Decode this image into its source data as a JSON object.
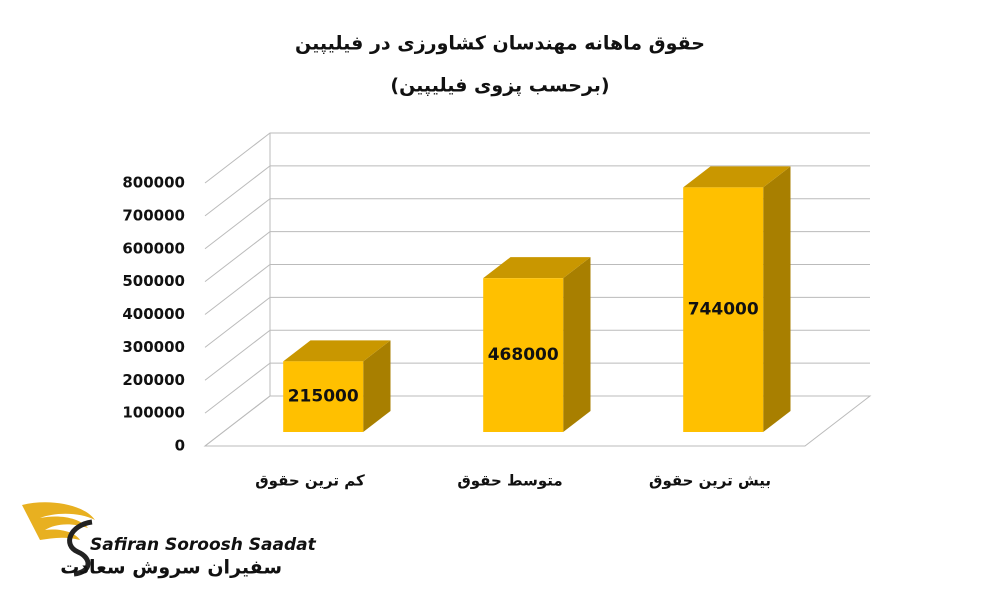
{
  "chart_data": {
    "type": "bar3d",
    "title": "حقوق ماهانه مهندسان کشاورزی در فیلیپین",
    "subtitle": "(برحسب  پزوی فیلیپین)",
    "categories": [
      "کم ترین حقوق",
      "متوسط حقوق",
      "بیش ترین حقوق"
    ],
    "values": [
      215000,
      468000,
      744000
    ],
    "color": "#ffc000",
    "ylim": [
      0,
      800000
    ],
    "yticks": [
      0,
      100000,
      200000,
      300000,
      400000,
      500000,
      600000,
      700000,
      800000
    ],
    "grid": true
  },
  "logo": {
    "latin": "Safiran Soroosh Saadat",
    "persian": "سفیران سروش سعادت"
  }
}
